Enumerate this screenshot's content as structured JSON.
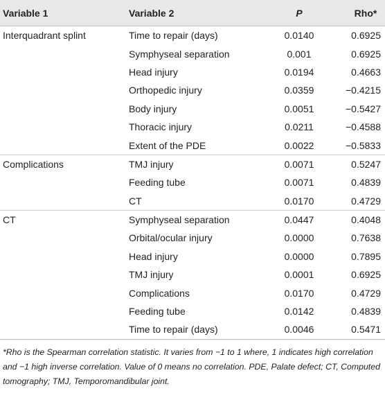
{
  "table": {
    "header": [
      "Variable 1",
      "Variable 2",
      "P",
      "Rho*"
    ],
    "groups": [
      {
        "name": "Interquadrant splint",
        "rows": [
          [
            "Time to repair (days)",
            "0.0140",
            "0.6925"
          ],
          [
            "Symphyseal separation",
            "0.001",
            "0.6925"
          ],
          [
            "Head injury",
            "0.0194",
            "0.4663"
          ],
          [
            "Orthopedic injury",
            "0.0359",
            "−0.4215"
          ],
          [
            "Body injury",
            "0.0051",
            "−0.5427"
          ],
          [
            "Thoracic injury",
            "0.0211",
            "−0.4588"
          ],
          [
            "Extent of the PDE",
            "0.0022",
            "−0.5833"
          ]
        ]
      },
      {
        "name": "Complications",
        "rows": [
          [
            "TMJ injury",
            "0.0071",
            "0.5247"
          ],
          [
            "Feeding tube",
            "0.0071",
            "0.4839"
          ],
          [
            "CT",
            "0.0170",
            "0.4729"
          ]
        ]
      },
      {
        "name": "CT",
        "rows": [
          [
            "Symphyseal separation",
            "0.0447",
            "0.4048"
          ],
          [
            "Orbital/ocular injury",
            "0.0000",
            "0.7638"
          ],
          [
            "Head injury",
            "0.0000",
            "0.7895"
          ],
          [
            "TMJ injury",
            "0.0001",
            "0.6925"
          ],
          [
            "Complications",
            "0.0170",
            "0.4729"
          ],
          [
            "Feeding tube",
            "0.0142",
            "0.4839"
          ],
          [
            "Time to repair (days)",
            "0.0046",
            "0.5471"
          ]
        ]
      }
    ],
    "footnote": "*Rho is the Spearman correlation statistic. It varies from −1 to 1 where, 1 indicates high correlation and −1 high inverse correlation. Value of 0 means no correlation. PDE, Palate defect; CT, Computed tomography; TMJ, Temporomandibular joint."
  }
}
